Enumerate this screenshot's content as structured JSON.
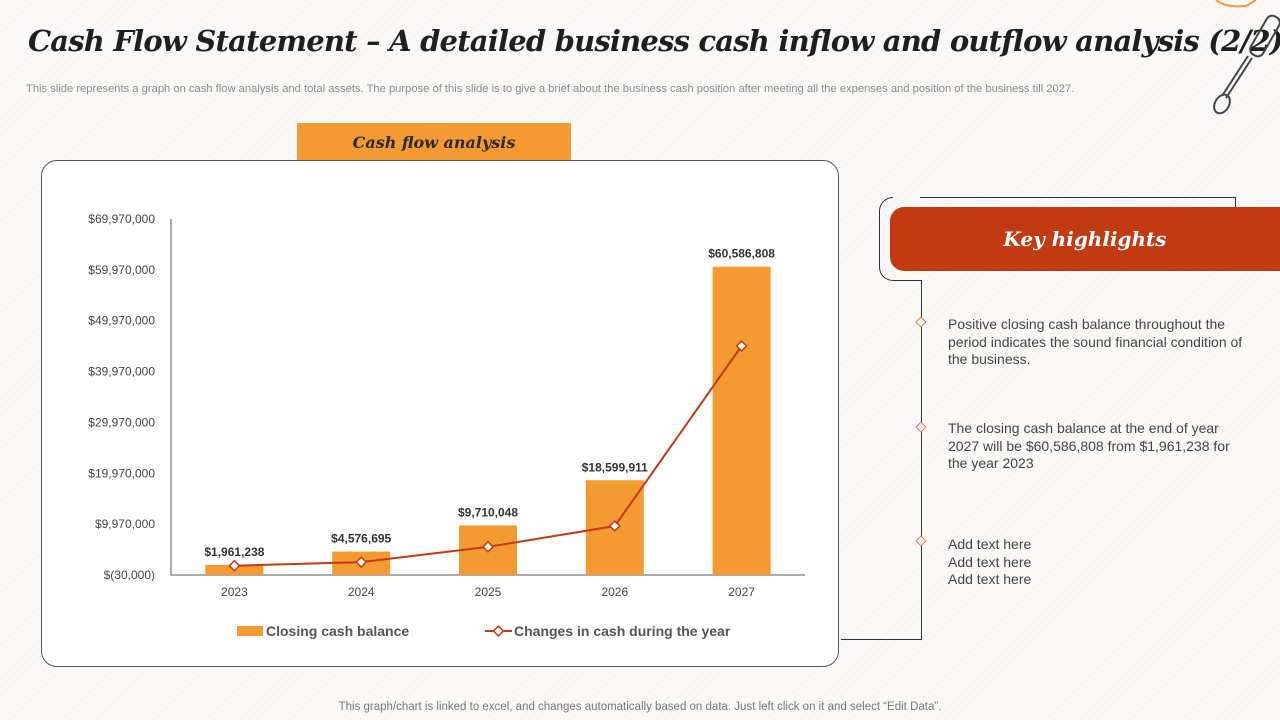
{
  "header": {
    "title": "Cash Flow Statement – A detailed business cash inflow and outflow analysis (2/2)",
    "subtitle": "This slide represents a graph on cash flow analysis and total assets. The purpose of this slide is to give a brief about the business cash position after meeting all the expenses and position of the business till 2027."
  },
  "chart_panel": {
    "tab_label": "Cash flow analysis"
  },
  "colors": {
    "bar": "#f39a33",
    "line": "#c23a12",
    "accent": "#c23a12"
  },
  "chart_data": {
    "type": "bar",
    "categories": [
      "2023",
      "2024",
      "2025",
      "2026",
      "2027"
    ],
    "series": [
      {
        "name": "Closing cash balance",
        "type": "bar",
        "values": [
          1961238,
          4576695,
          9710048,
          18599911,
          60586808
        ],
        "data_labels": [
          "$1,961,238",
          "$4,576,695",
          "$9,710,048",
          "$18,599,911",
          "$60,586,808"
        ]
      },
      {
        "name": "Changes in cash during the year",
        "type": "line",
        "values": [
          1800000,
          2500000,
          5500000,
          9600000,
          45000000
        ]
      }
    ],
    "y_ticks": [
      -30000,
      9970000,
      19970000,
      29970000,
      39970000,
      49970000,
      59970000,
      69970000
    ],
    "y_tick_labels": [
      "$(30,000)",
      "$9,970,000",
      "$19,970,000",
      "$29,970,000",
      "$39,970,000",
      "$49,970,000",
      "$59,970,000",
      "$69,970,000"
    ],
    "ylim": [
      -30000,
      69970000
    ],
    "grid": false,
    "legend": "bottom"
  },
  "highlights": {
    "title": "Key highlights",
    "items": [
      "Positive closing cash balance throughout the period indicates the sound financial condition of the business.",
      "The closing cash balance at the end of year 2027 will be $60,586,808 from $1,961,238 for the year 2023",
      "Add text here\nAdd text here\nAdd text here"
    ]
  },
  "footer": "This graph/chart is linked to excel, and changes automatically based on data. Just left click on it and select “Edit Data”."
}
